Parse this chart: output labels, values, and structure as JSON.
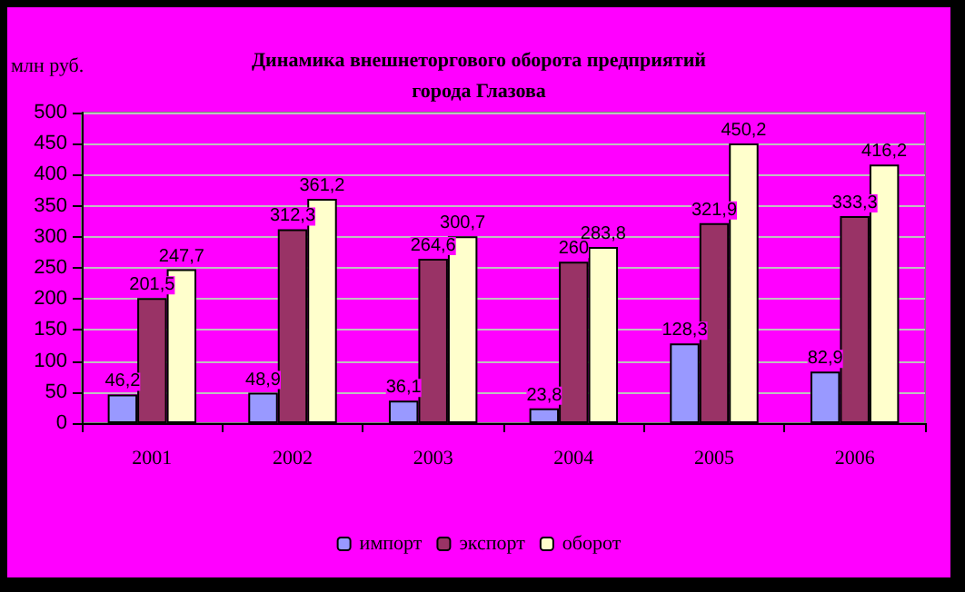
{
  "chart_data": {
    "type": "bar",
    "title": "Динамика внешнеторгового оборота предприятий\nгорода Глазова",
    "ylabel": "млн руб.",
    "categories": [
      "2001",
      "2002",
      "2003",
      "2004",
      "2005",
      "2006"
    ],
    "series": [
      {
        "name": "импорт",
        "color": "#9999ff",
        "values": [
          46.2,
          48.9,
          36.1,
          23.8,
          128.3,
          82.9
        ],
        "value_labels": [
          "46,2",
          "48,9",
          "36,1",
          "23,8",
          "128,3",
          "82,9"
        ]
      },
      {
        "name": "экспорт",
        "color": "#993366",
        "values": [
          201.5,
          312.3,
          264.6,
          260,
          321.9,
          333.3
        ],
        "value_labels": [
          "201,5",
          "312,3",
          "264,6",
          "260",
          "321,9",
          "333,3"
        ]
      },
      {
        "name": "оборот",
        "color": "#ffffcc",
        "values": [
          247.7,
          361.2,
          300.7,
          283.8,
          450.2,
          416.2
        ],
        "value_labels": [
          "247,7",
          "361,2",
          "300,7",
          "283,8",
          "450,2",
          "416,2"
        ]
      }
    ],
    "ylim": [
      0,
      500
    ],
    "yticks": [
      0,
      50,
      100,
      150,
      200,
      250,
      300,
      350,
      400,
      450,
      500
    ],
    "grid": "y",
    "legend": "bottom"
  }
}
